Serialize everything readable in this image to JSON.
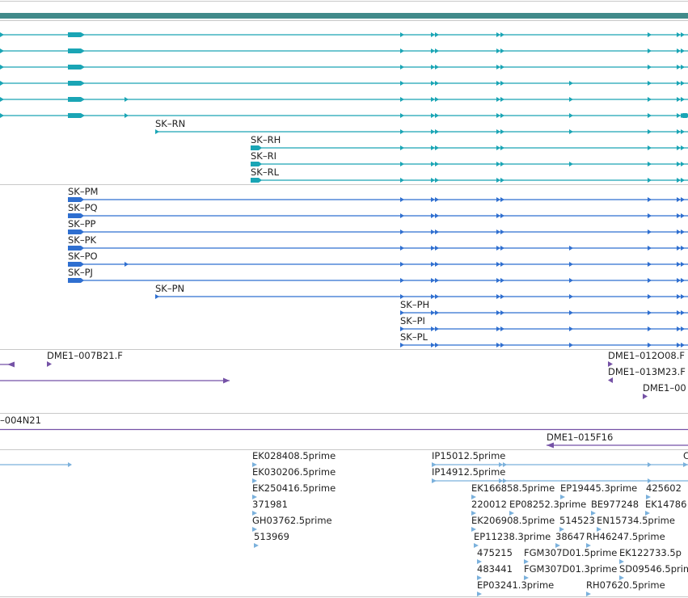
{
  "colors": {
    "scaffold": "#418a8a",
    "cyan": "#1aa5b5",
    "blue": "#2f6fd0",
    "purple": "#7552a6",
    "lightblue": "#7bb1dc",
    "divider": "#c8c8c8"
  },
  "tracks": {
    "cyan_labels": [
      "SK–RN",
      "SK–RH",
      "SK–RI",
      "SK–RL"
    ],
    "blue_labels": [
      "SK–PM",
      "SK–PQ",
      "SK–PP",
      "SK–PK",
      "SK–PO",
      "SK–PJ",
      "SK–PN",
      "SK–PH",
      "SK–PI",
      "SK–PL"
    ],
    "bac_labels": [
      "DME1–007B21.F",
      "DME1–012O08.F",
      "DME1–013M23.F",
      "DME1–00",
      "–004N21",
      "DME1–015F16"
    ],
    "est_labels": [
      "EK028408.5prime",
      "EK030206.5prime",
      "EK250416.5prime",
      "371981",
      "GH03762.5prime",
      "513969",
      "IP15012.5prime",
      "IP14912.5prime",
      "EK166858.5prime",
      "EP19445.3prime",
      "425602",
      "220012",
      "EP08252.3prime",
      "BE977248",
      "EK14786",
      "EK206908.5prime",
      "514523",
      "EN15734.5prime",
      "EP11238.3prime",
      "38647",
      "RH46247.5prime",
      "475215",
      "FGM307D01.5prime",
      "EK122733.5p",
      "483441",
      "FGM307D01.3prime",
      "SD09546.5prim",
      "EP03241.3prime",
      "RH07620.5prime",
      "C"
    ]
  }
}
